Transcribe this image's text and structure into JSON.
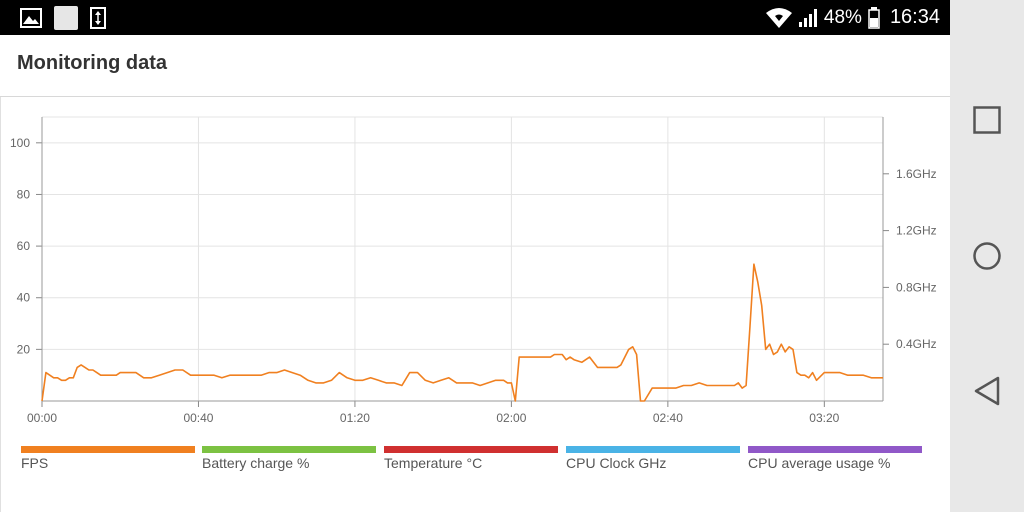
{
  "status_bar": {
    "left_icons": [
      "image-icon",
      "white-square-icon",
      "vertical-arrows-icon"
    ],
    "right_icons": [
      "wifi-icon",
      "signal-icon"
    ],
    "battery": "48%",
    "time": "16:34"
  },
  "header": {
    "title": "Monitoring data"
  },
  "nav": {
    "recent_apps": "square-icon",
    "home": "circle-icon",
    "back": "triangle-back-icon"
  },
  "colors": {
    "fps": "#f08020",
    "battery": "#7cc242",
    "temperature": "#d03030",
    "cpu_clock": "#4ab3e6",
    "cpu_usage": "#9058c8",
    "grid": "#e4e4e4"
  },
  "legend": [
    {
      "label": "FPS",
      "color": "#f08020"
    },
    {
      "label": "Battery charge %",
      "color": "#7cc242"
    },
    {
      "label": "Temperature °C",
      "color": "#d03030"
    },
    {
      "label": "CPU Clock GHz",
      "color": "#4ab3e6"
    },
    {
      "label": "CPU average usage %",
      "color": "#9058c8"
    }
  ],
  "chart_data": {
    "type": "line",
    "title": "",
    "xlabel": "",
    "ylabel": "",
    "x_unit": "seconds",
    "xlim": [
      0,
      215
    ],
    "ylim": [
      0,
      110
    ],
    "y2lim": [
      0,
      2.0
    ],
    "x_ticks": [
      0,
      40,
      80,
      120,
      160,
      200
    ],
    "x_tick_labels": [
      "00:00",
      "00:40",
      "01:20",
      "02:00",
      "02:40",
      "03:20"
    ],
    "y_ticks": [
      20,
      40,
      60,
      80,
      100
    ],
    "y_tick_labels": [
      "20",
      "40",
      "60",
      "80",
      "100"
    ],
    "y2_ticks": [
      0.4,
      0.8,
      1.2,
      1.6
    ],
    "y2_tick_labels": [
      "0.4GHz",
      "0.8GHz",
      "1.2GHz",
      "1.6GHz"
    ],
    "grid": true,
    "legend_placement": "bottom",
    "series": [
      {
        "name": "FPS",
        "color": "#f08020",
        "x": [
          0,
          1,
          2,
          3,
          4,
          5,
          6,
          7,
          8,
          9,
          10,
          11,
          12,
          13,
          14,
          15,
          16,
          17,
          18,
          19,
          20,
          22,
          24,
          26,
          28,
          30,
          32,
          34,
          36,
          38,
          40,
          42,
          44,
          46,
          48,
          50,
          52,
          54,
          56,
          58,
          60,
          62,
          64,
          66,
          68,
          70,
          72,
          74,
          76,
          78,
          80,
          82,
          84,
          86,
          88,
          90,
          92,
          94,
          96,
          98,
          100,
          102,
          104,
          106,
          108,
          110,
          112,
          114,
          116,
          118,
          119,
          120,
          121,
          122,
          124,
          126,
          128,
          130,
          131,
          132,
          133,
          134,
          135,
          136,
          138,
          140,
          142,
          144,
          146,
          147,
          148,
          150,
          151,
          152,
          153,
          154,
          156,
          158,
          160,
          162,
          164,
          166,
          168,
          170,
          172,
          174,
          176,
          177,
          178,
          179,
          180,
          181,
          182,
          183,
          184,
          185,
          186,
          187,
          188,
          189,
          190,
          191,
          192,
          193,
          194,
          195,
          196,
          197,
          198,
          200,
          202,
          204,
          206,
          208,
          210,
          212,
          215
        ],
        "y": [
          0,
          11,
          10,
          9,
          9,
          8,
          8,
          9,
          9,
          13,
          14,
          13,
          12,
          12,
          11,
          10,
          10,
          10,
          10,
          10,
          11,
          11,
          11,
          9,
          9,
          10,
          11,
          12,
          12,
          10,
          10,
          10,
          10,
          9,
          10,
          10,
          10,
          10,
          10,
          11,
          11,
          12,
          11,
          10,
          8,
          7,
          7,
          8,
          11,
          9,
          8,
          8,
          9,
          8,
          7,
          7,
          6,
          11,
          11,
          8,
          7,
          8,
          9,
          7,
          7,
          7,
          6,
          7,
          8,
          8,
          7,
          7,
          0,
          17,
          17,
          17,
          17,
          17,
          18,
          18,
          18,
          16,
          17,
          16,
          15,
          17,
          13,
          13,
          13,
          13,
          14,
          20,
          21,
          18,
          0,
          0,
          5,
          5,
          5,
          5,
          6,
          6,
          7,
          6,
          6,
          6,
          6,
          6,
          7,
          5,
          6,
          29,
          53,
          46,
          37,
          20,
          22,
          18,
          19,
          22,
          19,
          21,
          20,
          11,
          10,
          10,
          9,
          11,
          8,
          11,
          11,
          11,
          10,
          10,
          10,
          9,
          9
        ]
      }
    ]
  }
}
